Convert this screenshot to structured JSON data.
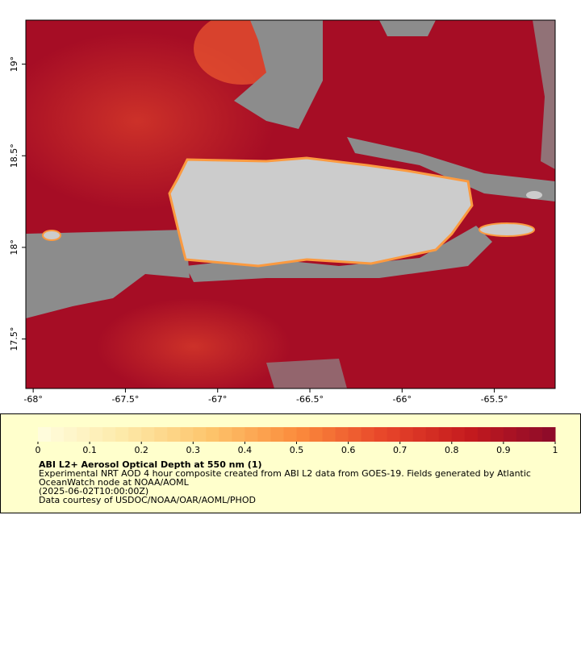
{
  "chart_data": {
    "type": "map",
    "xlim": [
      -68.04,
      -65.17
    ],
    "ylim": [
      17.23,
      19.24
    ],
    "xticks": [
      {
        "value": -68,
        "label": "-68°"
      },
      {
        "value": -67.5,
        "label": "-67.5°"
      },
      {
        "value": -67,
        "label": "-67°"
      },
      {
        "value": -66.5,
        "label": "-66.5°"
      },
      {
        "value": -66,
        "label": "-66°"
      },
      {
        "value": -65.5,
        "label": "-65.5°"
      }
    ],
    "yticks": [
      {
        "value": 17.5,
        "label": "17.5°"
      },
      {
        "value": 18,
        "label": "18°"
      },
      {
        "value": 18.5,
        "label": "18.5°"
      },
      {
        "value": 19,
        "label": "19°"
      }
    ],
    "colorbar": {
      "clim": [
        0,
        1
      ],
      "ticks": [
        0,
        0.1,
        0.2,
        0.3,
        0.4,
        0.5,
        0.6,
        0.7,
        0.8,
        0.9,
        1
      ],
      "colormap": [
        "#fffde0",
        "#fde9a8",
        "#fdc46b",
        "#fb8c3c",
        "#e8462a",
        "#c41a1e",
        "#8b0a2a"
      ]
    },
    "title": "ABI L2+ Aerosol Optical Depth at 550 nm (1)",
    "description": [
      "Experimental NRT AOD 4 hour composite created from ABI L2 data from GOES-19. Fields generated by Atlantic",
      "OceanWatch node at NOAA/AOML",
      "(2025-06-02T10:00:00Z)",
      "Data courtesy of USDOC/NOAA/OAR/AOML/PHOD"
    ]
  }
}
